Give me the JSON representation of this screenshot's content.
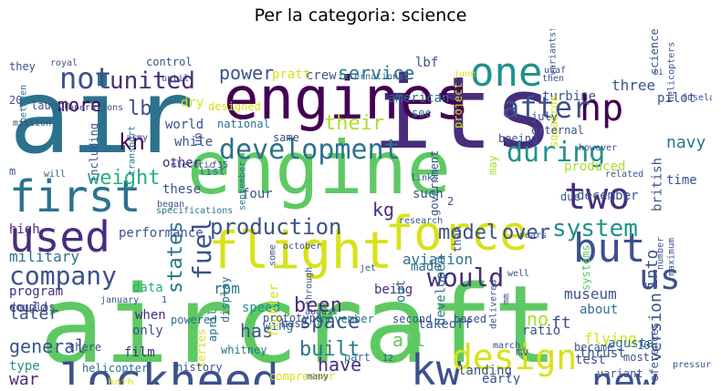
{
  "title": "Per la categoria: science",
  "colors": {
    "background": "#ffffff",
    "palette": [
      "#440154",
      "#472d7b",
      "#3b528b",
      "#2c728e",
      "#21918c",
      "#28ae80",
      "#5ec962",
      "#addc30",
      "#fde725"
    ]
  },
  "words": [
    {
      "text": "aircraft",
      "color": "#5ec962"
    },
    {
      "text": "engine",
      "color": "#5ec962"
    },
    {
      "text": "air",
      "color": "#2c728e"
    },
    {
      "text": "its",
      "color": "#472d7b"
    },
    {
      "text": "engines",
      "color": "#440154"
    },
    {
      "text": "flight",
      "color": "#d8e219"
    },
    {
      "text": "lockheed",
      "color": "#3b528b"
    },
    {
      "text": "force",
      "color": "#d8e219"
    },
    {
      "text": "first",
      "color": "#2c728e"
    },
    {
      "text": "one",
      "color": "#21918c"
    },
    {
      "text": "two",
      "color": "#472d7b"
    },
    {
      "text": "used",
      "color": "#472d7b"
    },
    {
      "text": "but",
      "color": "#3b528b"
    },
    {
      "text": "new",
      "color": "#3b528b"
    },
    {
      "text": "kw",
      "color": "#3b528b"
    },
    {
      "text": "design",
      "color": "#d8e219"
    },
    {
      "text": "hp",
      "color": "#440154"
    },
    {
      "text": "development",
      "color": "#2c728e"
    },
    {
      "text": "after",
      "color": "#3b528b"
    },
    {
      "text": "during",
      "color": "#21918c"
    },
    {
      "text": "us",
      "color": "#3b528b"
    },
    {
      "text": "company",
      "color": "#3b528b"
    },
    {
      "text": "would",
      "color": "#472d7b"
    },
    {
      "text": "not",
      "color": "#3b528b"
    },
    {
      "text": "united",
      "color": "#472d7b"
    },
    {
      "text": "production",
      "color": "#3b528b"
    },
    {
      "text": "fuel",
      "color": "#3b528b"
    },
    {
      "text": "system",
      "color": "#21918c"
    },
    {
      "text": "service",
      "color": "#2c728e"
    },
    {
      "text": "power",
      "color": "#3b528b"
    },
    {
      "text": "their",
      "color": "#addc30"
    },
    {
      "text": "weight",
      "color": "#28ae80"
    },
    {
      "text": "built",
      "color": "#2c728e"
    },
    {
      "text": "space",
      "color": "#3b528b"
    },
    {
      "text": "states",
      "color": "#2c728e"
    },
    {
      "text": "model",
      "color": "#3b528b"
    },
    {
      "text": "more",
      "color": "#440154"
    },
    {
      "text": "lb",
      "color": "#3b528b"
    },
    {
      "text": "kn",
      "color": "#440154"
    },
    {
      "text": "kg",
      "color": "#472d7b"
    },
    {
      "text": "over",
      "color": "#3b528b"
    },
    {
      "text": "into",
      "color": "#3b528b"
    },
    {
      "text": "version",
      "color": "#3b528b"
    },
    {
      "text": "general",
      "color": "#3b528b"
    },
    {
      "text": "war",
      "color": "#472d7b"
    },
    {
      "text": "later",
      "color": "#3b528b"
    },
    {
      "text": "has",
      "color": "#3b528b"
    },
    {
      "text": "have",
      "color": "#472d7b"
    },
    {
      "text": "been",
      "color": "#472d7b"
    },
    {
      "text": "all",
      "color": "#5ec962"
    },
    {
      "text": "no",
      "color": "#addc30"
    },
    {
      "text": "ft",
      "color": "#3b528b"
    },
    {
      "text": "rpm",
      "color": "#2c728e"
    },
    {
      "text": "military",
      "color": "#2c728e"
    },
    {
      "text": "aviation",
      "color": "#2c728e"
    },
    {
      "text": "museum",
      "color": "#3b528b"
    },
    {
      "text": "flying",
      "color": "#d8e219"
    },
    {
      "text": "thrust",
      "color": "#3b528b"
    },
    {
      "text": "navy",
      "color": "#2c728e"
    },
    {
      "text": "pilot",
      "color": "#3b528b"
    },
    {
      "text": "three",
      "color": "#3b528b"
    },
    {
      "text": "turbine",
      "color": "#3b528b"
    },
    {
      "text": "american",
      "color": "#2c728e"
    },
    {
      "text": "squadron",
      "color": "#d8e219"
    },
    {
      "text": "produced",
      "color": "#addc30"
    },
    {
      "text": "british",
      "color": "#3b528b"
    },
    {
      "text": "december",
      "color": "#3b528b"
    },
    {
      "text": "time",
      "color": "#3b528b"
    },
    {
      "text": "such",
      "color": "#3b528b"
    },
    {
      "text": "may",
      "color": "#addc30"
    },
    {
      "text": "performance",
      "color": "#3b528b"
    },
    {
      "text": "program",
      "color": "#472d7b"
    },
    {
      "text": "could",
      "color": "#472d7b"
    },
    {
      "text": "being",
      "color": "#472d7b"
    },
    {
      "text": "made",
      "color": "#2c728e"
    },
    {
      "text": "out",
      "color": "#2c728e"
    },
    {
      "text": "early",
      "color": "#3b528b"
    },
    {
      "text": "ratio",
      "color": "#3b528b"
    },
    {
      "text": "test",
      "color": "#3b528b"
    },
    {
      "text": "about",
      "color": "#2c728e"
    },
    {
      "text": "landing",
      "color": "#3b528b"
    },
    {
      "text": "takeoff",
      "color": "#3b528b"
    },
    {
      "text": "wing",
      "color": "#2c728e"
    },
    {
      "text": "speed",
      "color": "#21918c"
    },
    {
      "text": "fighter",
      "color": "#d8e219"
    },
    {
      "text": "film",
      "color": "#472d7b"
    },
    {
      "text": "high",
      "color": "#472d7b"
    },
    {
      "text": "type",
      "color": "#21918c"
    },
    {
      "text": "data",
      "color": "#28ae80"
    },
    {
      "text": "only",
      "color": "#3b528b"
    },
    {
      "text": "when",
      "color": "#472d7b"
    },
    {
      "text": "both",
      "color": "#d8e219"
    },
    {
      "text": "series",
      "color": "#d8e219"
    },
    {
      "text": "developed",
      "color": "#2c728e"
    },
    {
      "text": "systems",
      "color": "#5ec962"
    },
    {
      "text": "including",
      "color": "#3b528b"
    },
    {
      "text": "world",
      "color": "#3b528b"
    },
    {
      "text": "while",
      "color": "#3b528b"
    },
    {
      "text": "these",
      "color": "#3b528b"
    },
    {
      "text": "four",
      "color": "#3b528b"
    },
    {
      "text": "other",
      "color": "#472d7b"
    },
    {
      "text": "list",
      "color": "#2c728e"
    },
    {
      "text": "dry",
      "color": "#d8e219"
    },
    {
      "text": "designed",
      "color": "#d8e219"
    },
    {
      "text": "see",
      "color": "#2c728e"
    },
    {
      "text": "july",
      "color": "#3b528b"
    },
    {
      "text": "external",
      "color": "#3b528b"
    },
    {
      "text": "project",
      "color": "#d8e219"
    },
    {
      "text": "crew",
      "color": "#3b528b"
    },
    {
      "text": "pratt",
      "color": "#d8e219"
    },
    {
      "text": "lbf",
      "color": "#3b528b"
    },
    {
      "text": "second",
      "color": "#3b528b"
    },
    {
      "text": "based",
      "color": "#3b528b"
    },
    {
      "text": "agusta",
      "color": "#2c728e"
    },
    {
      "text": "became",
      "color": "#3b528b"
    },
    {
      "text": "most",
      "color": "#3b528b"
    },
    {
      "text": "references",
      "color": "#3b528b"
    },
    {
      "text": "under",
      "color": "#3b528b"
    },
    {
      "text": "before",
      "color": "#3b528b"
    },
    {
      "text": "mv",
      "color": "#3b528b"
    },
    {
      "text": "variant",
      "color": "#3b528b"
    },
    {
      "text": "range",
      "color": "#3b528b"
    },
    {
      "text": "part",
      "color": "#2c728e"
    },
    {
      "text": "november",
      "color": "#2c728e"
    },
    {
      "text": "history",
      "color": "#3b528b"
    },
    {
      "text": "helicopter",
      "color": "#2c728e"
    },
    {
      "text": "combat",
      "color": "#3b528b"
    },
    {
      "text": "compressor",
      "color": "#d8e219"
    },
    {
      "text": "isbn",
      "color": "#3b528b"
    },
    {
      "text": "douglas",
      "color": "#3b528b"
    },
    {
      "text": "prototype",
      "color": "#3b528b"
    },
    {
      "text": "powered",
      "color": "#2c728e"
    },
    {
      "text": "base",
      "color": "#3b528b"
    },
    {
      "text": "whitney",
      "color": "#2c728e"
    },
    {
      "text": "april",
      "color": "#2c728e"
    },
    {
      "text": "display",
      "color": "#2c728e"
    },
    {
      "text": "there",
      "color": "#3b528b"
    },
    {
      "text": "royal",
      "color": "#3b528b"
    },
    {
      "text": "control",
      "color": "#3b528b"
    },
    {
      "text": "they",
      "color": "#3b528b"
    },
    {
      "text": "between",
      "color": "#2c728e"
    },
    {
      "text": "launch",
      "color": "#3b528b"
    },
    {
      "text": "operations",
      "color": "#3b528b"
    },
    {
      "text": "army",
      "color": "#3b528b"
    },
    {
      "text": "transport",
      "color": "#2c728e"
    },
    {
      "text": "until",
      "color": "#3b528b"
    },
    {
      "text": "up",
      "color": "#3b528b"
    },
    {
      "text": "national",
      "color": "#2c728e"
    },
    {
      "text": "same",
      "color": "#3b528b"
    },
    {
      "text": "f35",
      "color": "#3b528b"
    },
    {
      "text": "government",
      "color": "#3b528b"
    },
    {
      "text": "than",
      "color": "#3b528b"
    },
    {
      "text": "usaf",
      "color": "#3b528b"
    },
    {
      "text": "then",
      "color": "#3b528b"
    },
    {
      "text": "ii",
      "color": "#3b528b"
    },
    {
      "text": "june",
      "color": "#d8e219"
    },
    {
      "text": "boeing",
      "color": "#3b528b"
    },
    {
      "text": "however",
      "color": "#3b528b"
    },
    {
      "text": "due",
      "color": "#3b528b"
    },
    {
      "text": "research",
      "color": "#3b528b"
    },
    {
      "text": "september",
      "color": "#2c728e"
    },
    {
      "text": "october",
      "color": "#3b528b"
    },
    {
      "text": "through",
      "color": "#3b528b"
    },
    {
      "text": "august",
      "color": "#3b528b"
    },
    {
      "text": "march",
      "color": "#3b528b"
    },
    {
      "text": "delivered",
      "color": "#3b528b"
    },
    {
      "text": "maximum",
      "color": "#3b528b"
    },
    {
      "text": "number",
      "color": "#3b528b"
    },
    {
      "text": "variantsflew",
      "color": "#3b528b"
    },
    {
      "text": "international",
      "color": "#2c728e"
    },
    {
      "text": "specifications",
      "color": "#2c728e"
    },
    {
      "text": "jet",
      "color": "#3b528b"
    },
    {
      "text": "well",
      "color": "#3b528b"
    },
    {
      "text": "some",
      "color": "#3b528b"
    },
    {
      "text": "will",
      "color": "#3b528b"
    },
    {
      "text": "began",
      "color": "#3b528b"
    },
    {
      "text": "related",
      "color": "#3b528b"
    },
    {
      "text": "links",
      "color": "#3b528b"
    },
    {
      "text": "mm",
      "color": "#3b528b"
    },
    {
      "text": "science",
      "color": "#3b528b"
    },
    {
      "text": "10",
      "color": "#3b528b"
    },
    {
      "text": "20",
      "color": "#3b528b"
    },
    {
      "text": "2",
      "color": "#3b528b"
    },
    {
      "text": "12",
      "color": "#3b528b"
    },
    {
      "text": "1",
      "color": "#3b528b"
    },
    {
      "text": "m",
      "color": "#3b528b"
    },
    {
      "text": "many",
      "color": "#3b528b"
    },
    {
      "text": "january",
      "color": "#3b528b"
    },
    {
      "text": "years",
      "color": "#3b528b"
    },
    {
      "text": "electric",
      "color": "#3b528b"
    },
    {
      "text": "mission",
      "color": "#3b528b"
    },
    {
      "text": "fuselage",
      "color": "#3b528b"
    },
    {
      "text": "helicopters",
      "color": "#3b528b"
    },
    {
      "text": "pressure",
      "color": "#3b528b"
    }
  ]
}
